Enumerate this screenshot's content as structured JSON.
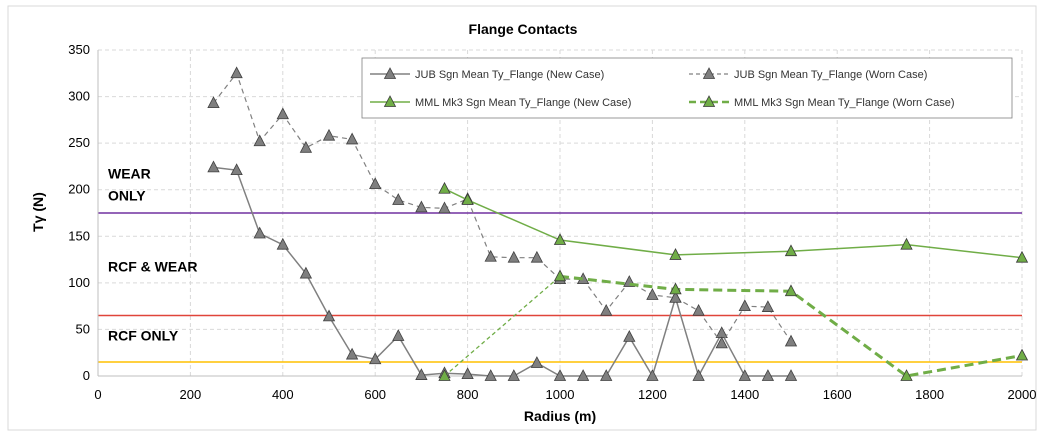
{
  "chart_data": {
    "type": "line",
    "title": "Flange  Contacts",
    "xlabel": "Radius (m)",
    "ylabel": "Tγ (N)",
    "xlim": [
      0,
      2000
    ],
    "ylim": [
      0,
      350
    ],
    "x_ticks": [
      0,
      200,
      400,
      600,
      800,
      1000,
      1200,
      1400,
      1600,
      1800,
      2000
    ],
    "y_ticks": [
      0,
      50,
      100,
      150,
      200,
      250,
      300,
      350
    ],
    "grid": "dashed",
    "legend_position": "top-right",
    "series": [
      {
        "name": "JUB Sgn Mean Ty_Flange (New Case)",
        "color": "#808080",
        "dash": "solid",
        "x": [
          250,
          300,
          350,
          400,
          450,
          500,
          550,
          600,
          650,
          700,
          750,
          800,
          850,
          900,
          950,
          1000,
          1050,
          1100,
          1150,
          1200,
          1250,
          1300,
          1350,
          1400,
          1450,
          1500
        ],
        "y": [
          224,
          221,
          153,
          141,
          110,
          64,
          23,
          18,
          43,
          1,
          3,
          2,
          0,
          0,
          14,
          0,
          0,
          0,
          42,
          0,
          84,
          0,
          46,
          0,
          0,
          0
        ]
      },
      {
        "name": "JUB Sgn Mean Ty_Flange (Worn Case)",
        "color": "#808080",
        "dash": "dashed",
        "x": [
          250,
          300,
          350,
          400,
          450,
          500,
          550,
          600,
          650,
          700,
          750,
          800,
          850,
          900,
          950,
          1000,
          1050,
          1100,
          1150,
          1200,
          1250,
          1300,
          1350,
          1400,
          1450,
          1500
        ],
        "y": [
          293,
          325,
          252,
          281,
          245,
          258,
          254,
          206,
          189,
          181,
          180,
          190,
          128,
          127,
          127,
          104,
          104,
          70,
          101,
          87,
          84,
          70,
          35,
          75,
          74,
          37
        ]
      },
      {
        "name": "MML Mk3 Sgn Mean Ty_Flange (New Case)",
        "color": "#70AD47",
        "dash": "solid",
        "x": [
          750,
          800,
          1000,
          1250,
          1500,
          1750,
          2000
        ],
        "y": [
          201,
          189,
          146,
          130,
          134,
          141,
          127
        ]
      },
      {
        "name": "MML Mk3 Sgn Mean Ty_Flange (Worn Case)",
        "color": "#70AD47",
        "dash": "dashed",
        "x": [
          750,
          1000,
          1250,
          1500,
          1750,
          2000
        ],
        "y": [
          0,
          107,
          93,
          91,
          0,
          22
        ]
      }
    ],
    "reference_lines": [
      {
        "y": 175,
        "color": "#7030A0"
      },
      {
        "y": 65,
        "color": "#E0443A"
      },
      {
        "y": 15,
        "color": "#FFC000"
      }
    ],
    "zone_labels": [
      {
        "text_lines": [
          "WEAR",
          "ONLY"
        ],
        "anchor_y": 212
      },
      {
        "text_lines": [
          "RCF & WEAR"
        ],
        "anchor_y": 112
      },
      {
        "text_lines": [
          "RCF ONLY"
        ],
        "anchor_y": 38
      }
    ]
  }
}
